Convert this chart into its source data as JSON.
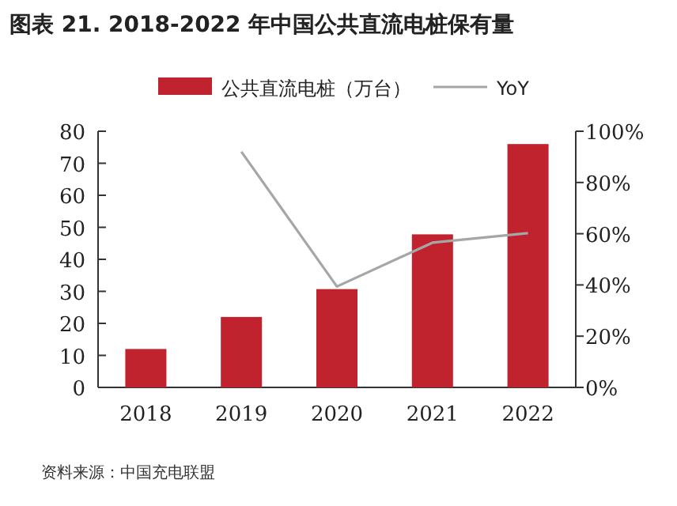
{
  "chart_data": {
    "type": "bar",
    "title": "图表 21. 2018-2022 年中国公共直流电桩保有量",
    "categories": [
      "2018",
      "2019",
      "2020",
      "2021",
      "2022"
    ],
    "series": [
      {
        "name": "公共直流电桩（万台）",
        "color": "#c0222e",
        "values": [
          12,
          22,
          30.7,
          47.8,
          76
        ]
      },
      {
        "name": "YoY",
        "type": "line",
        "axis": "y2",
        "color": "#a6a6a6",
        "values": [
          null,
          92,
          39.4,
          56.5,
          60.2
        ]
      }
    ],
    "ylim": [
      0,
      80
    ],
    "yticks": [
      0,
      10,
      20,
      30,
      40,
      50,
      60,
      70,
      80
    ],
    "y2lim": [
      0,
      100
    ],
    "y2ticks": [
      {
        "value": 0,
        "label": "0%"
      },
      {
        "value": 20,
        "label": "20%"
      },
      {
        "value": 40,
        "label": "40%"
      },
      {
        "value": 60,
        "label": "60%"
      },
      {
        "value": 80,
        "label": "80%"
      },
      {
        "value": 100,
        "label": "100%"
      }
    ],
    "legend": "top",
    "grid": false,
    "marker": "none",
    "annotations": [
      "资料来源：中国充电联盟"
    ]
  }
}
